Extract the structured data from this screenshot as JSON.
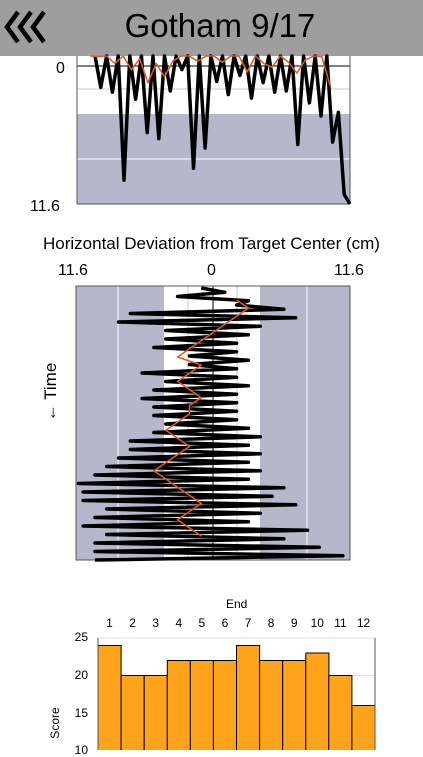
{
  "header": {
    "title": "Gotham 9/17",
    "back_icon": "triple-chevron-left-icon"
  },
  "vertical_chart": {
    "axis_top_label": "0",
    "axis_bottom_label": "11.6"
  },
  "horizontal_chart": {
    "title": "Horizontal Deviation from Target Center (cm)",
    "tick_left": "11.6",
    "tick_center": "0",
    "tick_right": "11.6",
    "ylabel": "← Time"
  },
  "score_chart": {
    "xlabel": "End",
    "ylabel": "Score",
    "yticks": [
      "25",
      "20",
      "15",
      "10"
    ],
    "bar_color": "#ffa31a"
  },
  "chart_data": [
    {
      "type": "line",
      "title": "",
      "xlabel": "",
      "ylabel": "",
      "ylim": [
        -3,
        11.6
      ],
      "series": [
        {
          "name": "",
          "color": "#000000",
          "values": [
            -2.4,
            1.8,
            -1.9,
            2.2,
            -2.3,
            9.6,
            -2.5,
            2.8,
            -1.8,
            5.6,
            -1.8,
            6.1,
            -2.5,
            2.1,
            -2.4,
            0.3,
            -2.6,
            8.6,
            -1.7,
            6.9,
            -2.4,
            1.3,
            -2.5,
            2.4,
            -2.3,
            0.8,
            -2.6,
            2.7,
            -1.9,
            1.4,
            -2.7,
            2.2,
            -1.8,
            2.1,
            -2.2,
            6.6,
            -2.4,
            3.1,
            -1.9,
            4.2,
            -2.5,
            6.4,
            3.9,
            10.8,
            11.6
          ]
        },
        {
          "name": "",
          "color": "#e8571e",
          "values": [
            -1.4,
            -0.8,
            -1.2,
            -0.2,
            -1.1,
            0.3,
            -0.6,
            1.4,
            -0.2,
            0.9,
            -0.4,
            -0.9,
            -1.6,
            -0.4,
            -1.5,
            -0.9,
            -0.3,
            -1.3,
            -1.1,
            0.5,
            -0.9,
            -0.2,
            0.1,
            -1.2,
            -0.3,
            0.6,
            -0.5,
            -1.5,
            -0.8,
            1.6
          ]
        }
      ]
    },
    {
      "type": "line",
      "title": "Horizontal Deviation from Target Center (cm)",
      "xlabel": "",
      "ylabel": "← Time",
      "xlim": [
        -11.6,
        11.6
      ],
      "series": [
        {
          "name": "",
          "color": "#000000",
          "values": [
            -1,
            1,
            -3,
            3,
            2,
            6,
            -7,
            7,
            -8,
            4,
            -4,
            3,
            -4,
            2,
            -5,
            2,
            -2,
            3,
            -2,
            2,
            -6,
            2,
            -4,
            3,
            -5,
            2,
            -6,
            2,
            -5,
            2,
            -5,
            2,
            -4,
            3,
            -5,
            4,
            -7,
            3,
            -7,
            4,
            -8,
            3,
            -9,
            4,
            -10,
            3,
            -11.4,
            6,
            -11,
            5,
            -11,
            7,
            -9,
            4,
            -10,
            3,
            -11,
            8,
            -9,
            6,
            -10,
            9,
            -10,
            11,
            -10
          ]
        },
        {
          "name": "",
          "color": "#e8571e",
          "values": [
            2,
            3,
            2,
            1,
            0,
            -1,
            -2,
            -3,
            -1,
            -2,
            -3,
            -2,
            -1,
            -2,
            -2,
            -3,
            -4,
            -3,
            -2,
            -3,
            -4,
            -5,
            -4,
            -3,
            -2,
            -1,
            -2,
            -3,
            -2,
            -1
          ]
        }
      ]
    },
    {
      "type": "bar",
      "title": "",
      "xlabel": "End",
      "ylabel": "Score",
      "categories": [
        "1",
        "2",
        "3",
        "4",
        "5",
        "6",
        "7",
        "8",
        "9",
        "10",
        "11",
        "12"
      ],
      "values": [
        24,
        20,
        20,
        22,
        22,
        22,
        24,
        22,
        22,
        23,
        20,
        16
      ],
      "ylim": [
        10,
        25
      ]
    }
  ]
}
